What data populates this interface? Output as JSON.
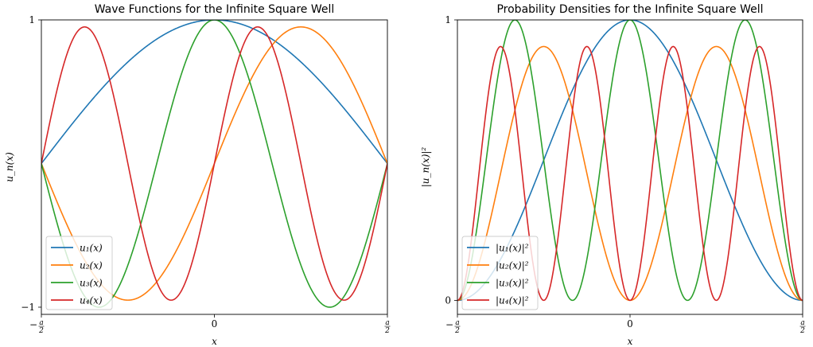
{
  "chart_data": [
    {
      "type": "line",
      "title": "Wave Functions for the Infinite Square Well",
      "xlabel": "x",
      "ylabel": "u_n(x)",
      "xlim": [
        -0.5,
        0.5
      ],
      "ylim": [
        -1.05,
        1.0
      ],
      "x_unit": "a",
      "xticks": [
        {
          "value": -0.5,
          "sign": "−",
          "num": "a",
          "den": "2"
        },
        {
          "value": 0,
          "label": "0"
        },
        {
          "value": 0.5,
          "sign": "",
          "num": "a",
          "den": "2"
        }
      ],
      "yticks": [
        {
          "value": 1,
          "label": "1"
        },
        {
          "value": -1,
          "label": "−1"
        }
      ],
      "legend_position": "lower-left",
      "x": [
        -0.5,
        -0.4,
        -0.3,
        -0.2,
        -0.1,
        0,
        0.1,
        0.2,
        0.3,
        0.4,
        0.5
      ],
      "series": [
        {
          "name": "u₁(x)",
          "color": "#1f77b4",
          "values": [
            0,
            0.309,
            0.588,
            0.809,
            0.951,
            1,
            0.951,
            0.809,
            0.588,
            0.309,
            0
          ]
        },
        {
          "name": "u₂(x)",
          "color": "#ff7f0e",
          "values": [
            0,
            -0.588,
            -0.951,
            -0.951,
            -0.588,
            0,
            0.588,
            0.951,
            0.951,
            0.588,
            0
          ]
        },
        {
          "name": "u₃(x)",
          "color": "#2ca02c",
          "values": [
            0,
            -0.809,
            -0.951,
            -0.309,
            0.588,
            1,
            0.588,
            -0.309,
            -0.951,
            -0.809,
            0
          ]
        },
        {
          "name": "u₄(x)",
          "color": "#d62728",
          "values": [
            0,
            0.951,
            0.588,
            -0.588,
            -0.951,
            0,
            0.951,
            0.588,
            -0.588,
            -0.951,
            0
          ]
        }
      ]
    },
    {
      "type": "line",
      "title": "Probability Densities for the Infinite Square Well",
      "xlabel": "x",
      "ylabel": "|u_n(x)|²",
      "xlim": [
        -0.5,
        0.5
      ],
      "ylim": [
        -0.05,
        1.0
      ],
      "x_unit": "a",
      "xticks": [
        {
          "value": -0.5,
          "sign": "−",
          "num": "a",
          "den": "2"
        },
        {
          "value": 0,
          "label": "0"
        },
        {
          "value": 0.5,
          "sign": "",
          "num": "a",
          "den": "2"
        }
      ],
      "yticks": [
        {
          "value": 1,
          "label": "1"
        },
        {
          "value": 0,
          "label": "0"
        }
      ],
      "legend_position": "lower-left",
      "x": [
        -0.5,
        -0.4,
        -0.3,
        -0.2,
        -0.1,
        0,
        0.1,
        0.2,
        0.3,
        0.4,
        0.5
      ],
      "series": [
        {
          "name": "|u₁(x)|²",
          "color": "#1f77b4",
          "values": [
            0,
            0.095,
            0.345,
            0.655,
            0.905,
            1,
            0.905,
            0.655,
            0.345,
            0.095,
            0
          ]
        },
        {
          "name": "|u₂(x)|²",
          "color": "#ff7f0e",
          "values": [
            0,
            0.345,
            0.905,
            0.905,
            0.345,
            0,
            0.345,
            0.905,
            0.905,
            0.345,
            0
          ]
        },
        {
          "name": "|u₃(x)|²",
          "color": "#2ca02c",
          "values": [
            0,
            0.655,
            0.905,
            0.095,
            0.345,
            1,
            0.345,
            0.095,
            0.905,
            0.655,
            0
          ]
        },
        {
          "name": "|u₄(x)|²",
          "color": "#d62728",
          "values": [
            0,
            0.905,
            0.345,
            0.345,
            0.905,
            0,
            0.905,
            0.345,
            0.345,
            0.905,
            0
          ]
        }
      ]
    }
  ]
}
